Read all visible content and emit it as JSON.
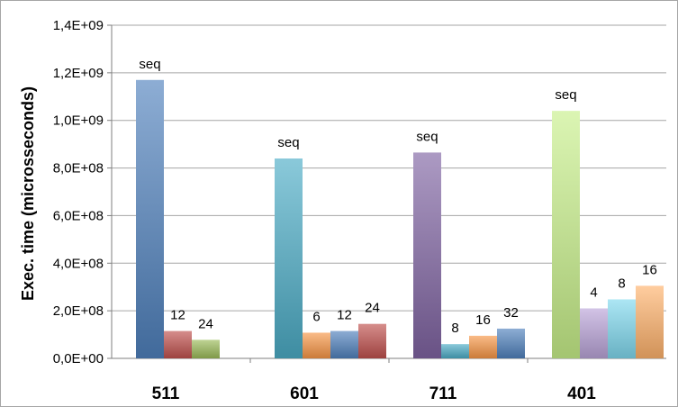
{
  "colors": {
    "blue": "#4f81bd",
    "red": "#c0504d",
    "green": "#9bbb59",
    "purple": "#8064a2",
    "aqua": "#4bacc6",
    "orange": "#f79646",
    "light_green": "#c8f08a",
    "light_purple": "#b9a3d8",
    "light_aqua": "#7fd8ee",
    "light_orange": "#ffb26b"
  },
  "chart_data": {
    "type": "bar",
    "xlabel": "",
    "ylabel": "Exec. time (microsseconds)",
    "ylim": [
      0,
      1400000000
    ],
    "yticks": [
      0,
      200000000,
      400000000,
      600000000,
      800000000,
      1000000000,
      1200000000,
      1400000000
    ],
    "ytick_labels": [
      "0,0E+00",
      "2,0E+08",
      "4,0E+08",
      "6,0E+08",
      "8,0E+08",
      "1,0E+09",
      "1,2E+09",
      "1,4E+09"
    ],
    "grid": "horizontal",
    "legend": "none",
    "groups": [
      {
        "category": "511",
        "bars": [
          {
            "label": "seq",
            "value": 1170000000,
            "color": "blue"
          },
          {
            "label": "12",
            "value": 115000000,
            "color": "red"
          },
          {
            "label": "24",
            "value": 78000000,
            "color": "green"
          }
        ]
      },
      {
        "category": "601",
        "bars": [
          {
            "label": "seq",
            "value": 840000000,
            "color": "aqua"
          },
          {
            "label": "6",
            "value": 108000000,
            "color": "orange"
          },
          {
            "label": "12",
            "value": 115000000,
            "color": "blue"
          },
          {
            "label": "24",
            "value": 145000000,
            "color": "red"
          }
        ]
      },
      {
        "category": "711",
        "bars": [
          {
            "label": "seq",
            "value": 865000000,
            "color": "purple"
          },
          {
            "label": "8",
            "value": 60000000,
            "color": "aqua"
          },
          {
            "label": "16",
            "value": 95000000,
            "color": "orange"
          },
          {
            "label": "32",
            "value": 125000000,
            "color": "blue"
          }
        ]
      },
      {
        "category": "401",
        "bars": [
          {
            "label": "seq",
            "value": 1040000000,
            "color": "light_green"
          },
          {
            "label": "4",
            "value": 210000000,
            "color": "light_purple"
          },
          {
            "label": "8",
            "value": 248000000,
            "color": "light_aqua"
          },
          {
            "label": "16",
            "value": 305000000,
            "color": "light_orange"
          }
        ]
      }
    ]
  }
}
